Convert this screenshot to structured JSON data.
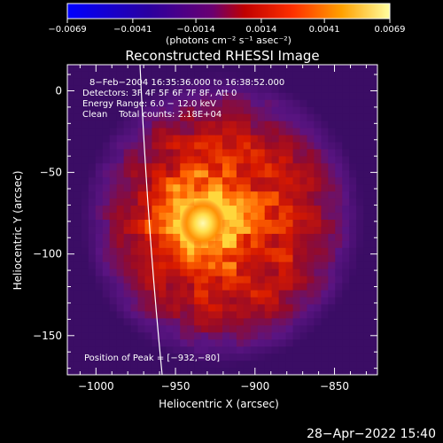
{
  "chart_data": {
    "type": "heatmap",
    "title": "Reconstructed RHESSI Image",
    "xlabel": "Heliocentric X (arcsec)",
    "ylabel": "Heliocentric Y (arcsec)",
    "xlim": [
      -1018,
      -823
    ],
    "ylim": [
      -174,
      16
    ],
    "x_ticks": [
      -1000,
      -950,
      -900,
      -850
    ],
    "y_ticks": [
      0,
      -50,
      -100,
      -150
    ],
    "x_tick_labels": [
      "−1000",
      "−950",
      "−900",
      "−850"
    ],
    "y_tick_labels": [
      "0",
      "−50",
      "−100",
      "−150"
    ],
    "colorbar": {
      "min": -0.0069,
      "max": 0.0069,
      "ticks": [
        -0.0069,
        -0.0041,
        -0.0014,
        0.0014,
        0.0041,
        0.0069
      ],
      "tick_labels": [
        "−0.0069",
        "−0.0041",
        "−0.0014",
        "0.0014",
        "0.0041",
        "0.0069"
      ],
      "unit_label": "(photons cm⁻² s⁻¹ asec⁻²)"
    },
    "annotations": {
      "time_range": "8−Feb−2004 16:35:36.000 to 16:38:52.000",
      "detectors": "Detectors: 3F 4F 5F 6F 7F 8F, Att 0",
      "energy": "Energy Range: 6.0 − 12.0 keV",
      "clean": "Clean    Total counts: 2.18E+04",
      "peak": "Position of Peak = [−932,−80]"
    },
    "peak_position": [
      -932,
      -80
    ],
    "timestamp": "28−Apr−2022 15:40"
  }
}
